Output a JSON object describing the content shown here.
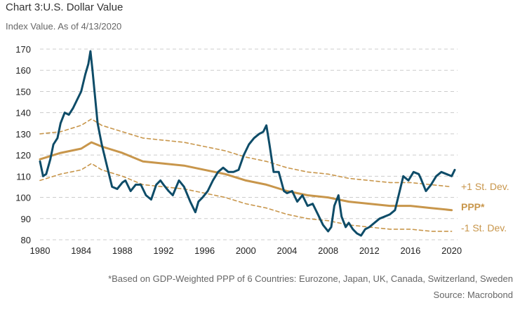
{
  "header": {
    "title": "Chart 3:U.S. Dollar Value",
    "subtitle": "Index Value. As of 4/13/2020"
  },
  "footer": {
    "footnote": "*Based on GDP-Weighted PPP of 6 Countries: Eurozone, Japan, UK, Canada, Switzerland, Sweden",
    "source": "Source: Macrobond"
  },
  "colors": {
    "usd": "#0e4c68",
    "ppp": "#c8964b",
    "grid": "#cccccc",
    "band_label": "#c8964b"
  },
  "chart_data": {
    "type": "line",
    "title": "Chart 3:U.S. Dollar Value",
    "subtitle": "Index Value. As of 4/13/2020",
    "xlim": [
      1980,
      2020.3
    ],
    "ylim": [
      80,
      170
    ],
    "x_ticks": [
      1980,
      1984,
      1988,
      1992,
      1996,
      2000,
      2004,
      2008,
      2012,
      2016,
      2020
    ],
    "y_ticks": [
      80,
      90,
      100,
      110,
      120,
      130,
      140,
      150,
      160,
      170
    ],
    "grid": "horizontal dashed",
    "series_labels": {
      "upper": "+1 St. Dev.",
      "ppp": "PPP*",
      "lower": "-1 St. Dev."
    },
    "series": [
      {
        "key": "usd",
        "style": "solid-thick",
        "x": [
          1980.0,
          1980.3,
          1980.6,
          1981.0,
          1981.3,
          1981.7,
          1982.0,
          1982.4,
          1982.8,
          1983.2,
          1983.6,
          1984.0,
          1984.4,
          1984.7,
          1984.9,
          1985.1,
          1985.3,
          1985.6,
          1986.0,
          1986.5,
          1987.0,
          1987.5,
          1988.0,
          1988.3,
          1988.8,
          1989.3,
          1989.8,
          1990.3,
          1990.8,
          1991.3,
          1991.7,
          1992.0,
          1992.5,
          1992.9,
          1993.5,
          1994.0,
          1994.6,
          1995.1,
          1995.4,
          1995.8,
          1996.3,
          1996.8,
          1997.3,
          1997.8,
          1998.3,
          1998.8,
          1999.3,
          1999.8,
          2000.3,
          2000.8,
          2001.3,
          2001.7,
          2002.0,
          2002.3,
          2002.7,
          2003.2,
          2003.7,
          2004.0,
          2004.5,
          2005.0,
          2005.5,
          2006.0,
          2006.5,
          2007.0,
          2007.5,
          2008.0,
          2008.3,
          2008.6,
          2009.0,
          2009.3,
          2009.7,
          2010.0,
          2010.4,
          2010.8,
          2011.2,
          2011.6,
          2012.0,
          2012.5,
          2013.0,
          2013.5,
          2014.0,
          2014.5,
          2015.0,
          2015.3,
          2015.8,
          2016.3,
          2016.8,
          2017.0,
          2017.5,
          2018.0,
          2018.5,
          2019.0,
          2019.5,
          2020.0,
          2020.3
        ],
        "y": [
          117,
          110,
          111,
          118,
          125,
          128,
          135,
          140,
          139,
          142,
          146,
          150,
          158,
          163,
          169,
          160,
          150,
          135,
          125,
          115,
          105,
          104,
          107,
          108,
          103,
          106,
          106,
          101,
          99,
          106,
          108,
          106,
          103,
          101,
          108,
          105,
          98,
          93,
          98,
          100,
          103,
          108,
          112,
          114,
          112,
          112,
          113,
          120,
          125,
          128,
          130,
          131,
          134,
          125,
          112,
          112,
          103,
          102,
          103,
          98,
          101,
          96,
          97,
          92,
          87,
          84,
          86,
          96,
          101,
          91,
          86,
          88,
          85,
          83,
          82,
          85,
          86,
          88,
          90,
          91,
          92,
          94,
          104,
          110,
          108,
          112,
          111,
          109,
          103,
          106,
          110,
          112,
          111,
          110,
          113
        ]
      },
      {
        "key": "ppp",
        "style": "solid-medium",
        "x": [
          1980.0,
          1982.0,
          1984.0,
          1985.0,
          1986.0,
          1988.0,
          1990.0,
          1992.0,
          1994.0,
          1996.0,
          1998.0,
          2000.0,
          2002.0,
          2004.0,
          2006.0,
          2008.0,
          2010.0,
          2012.0,
          2014.0,
          2016.0,
          2018.0,
          2020.0
        ],
        "y": [
          118,
          121,
          123,
          126,
          124,
          121,
          117,
          116,
          115,
          113,
          111,
          108,
          106,
          103,
          101,
          100,
          98,
          97,
          96,
          96,
          95,
          94
        ]
      },
      {
        "key": "upper",
        "style": "dashed",
        "x": [
          1980.0,
          1982.0,
          1984.0,
          1985.0,
          1986.0,
          1988.0,
          1990.0,
          1992.0,
          1994.0,
          1996.0,
          1998.0,
          2000.0,
          2002.0,
          2004.0,
          2006.0,
          2008.0,
          2010.0,
          2012.0,
          2014.0,
          2016.0,
          2018.0,
          2020.0
        ],
        "y": [
          130,
          131,
          134,
          137,
          134,
          131,
          128,
          127,
          126,
          124,
          122,
          119,
          117,
          114,
          112,
          111,
          109,
          108,
          107,
          107,
          106,
          105
        ]
      },
      {
        "key": "lower",
        "style": "dashed",
        "x": [
          1980.0,
          1982.0,
          1984.0,
          1985.0,
          1986.0,
          1988.0,
          1990.0,
          1992.0,
          1994.0,
          1996.0,
          1998.0,
          2000.0,
          2002.0,
          2004.0,
          2006.0,
          2008.0,
          2010.0,
          2012.0,
          2014.0,
          2016.0,
          2018.0,
          2020.0
        ],
        "y": [
          108,
          111,
          113,
          116,
          113,
          110,
          106,
          105,
          104,
          102,
          100,
          97,
          95,
          92,
          90,
          89,
          87,
          86,
          85,
          85,
          84,
          84
        ]
      }
    ]
  }
}
